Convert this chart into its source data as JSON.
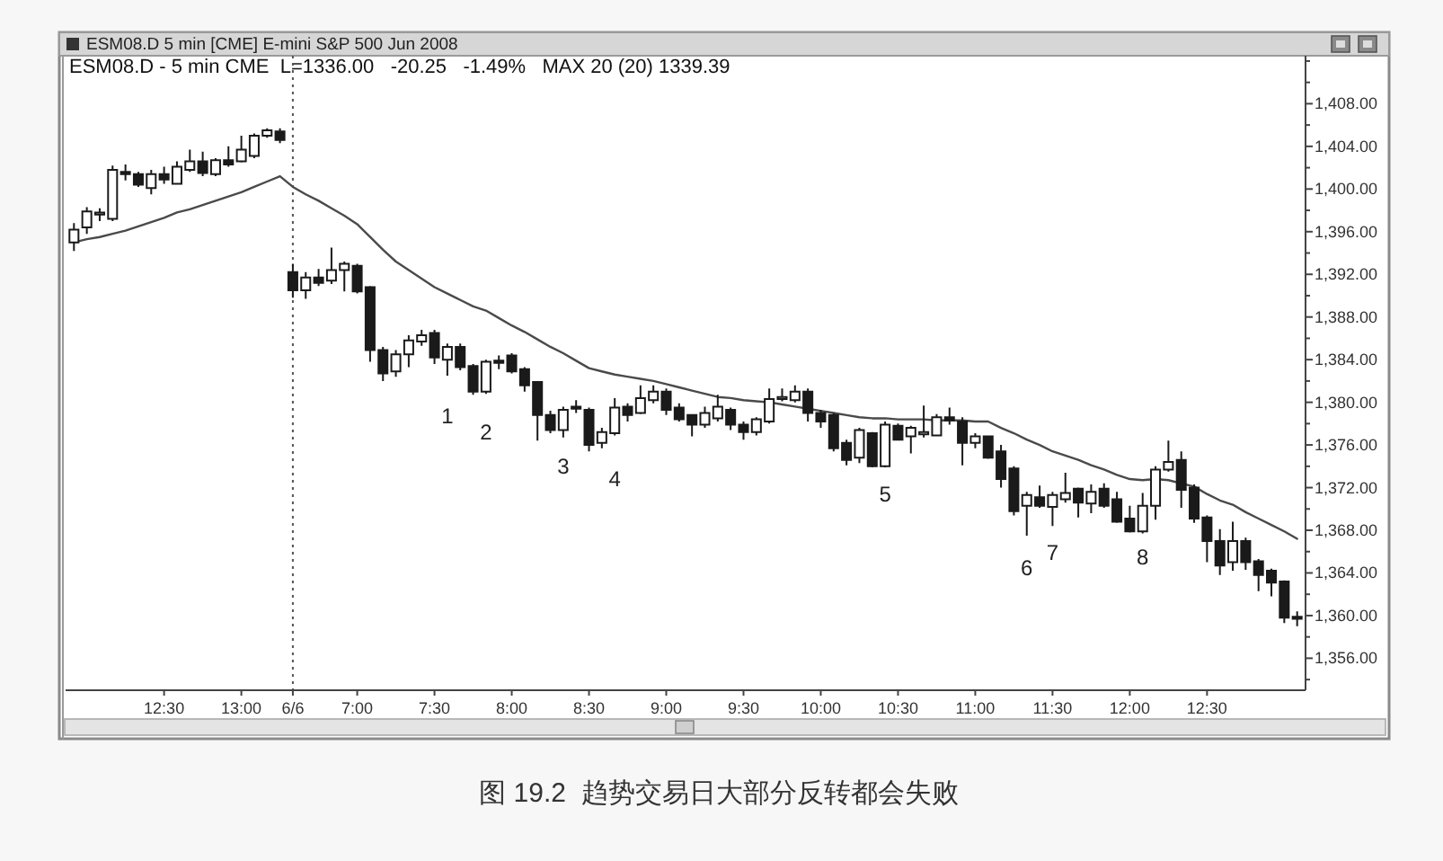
{
  "chart_data": {
    "type": "candlestick",
    "title": "ESM08.D 5 min [CME] E-mini S&P 500 Jun 2008",
    "subtitle": "ESM08.D - 5 min CME  L=1336.00   -20.25   -1.49%   MAX 20 (20) 1339.39",
    "categories": [
      null,
      null,
      null,
      null,
      null,
      null,
      null,
      "12:30",
      null,
      null,
      null,
      null,
      null,
      "13:00",
      null,
      null,
      null,
      "6/6",
      null,
      null,
      null,
      null,
      "7:00",
      null,
      null,
      null,
      null,
      null,
      "7:30",
      null,
      null,
      null,
      null,
      null,
      "8:00",
      null,
      null,
      null,
      null,
      null,
      "8:30",
      null,
      null,
      null,
      null,
      null,
      "9:00",
      null,
      null,
      null,
      null,
      null,
      "9:30",
      null,
      null,
      null,
      null,
      null,
      "10:00",
      null,
      null,
      null,
      null,
      null,
      "10:30",
      null,
      null,
      null,
      null,
      null,
      "11:00",
      null,
      null,
      null,
      null,
      null,
      "11:30",
      null,
      null,
      null,
      null,
      null,
      "12:00",
      null,
      null,
      null,
      null,
      null,
      "12:30",
      null,
      null,
      null,
      null,
      null,
      null,
      null
    ],
    "color": "#1a1a1a",
    "ohlc": [
      [
        1395.0,
        1396.8,
        1394.2,
        1396.2
      ],
      [
        1396.4,
        1398.3,
        1395.8,
        1397.9
      ],
      [
        1397.6,
        1398.2,
        1397.0,
        1397.8
      ],
      [
        1397.2,
        1402.2,
        1397.0,
        1401.8
      ],
      [
        1401.6,
        1402.3,
        1400.8,
        1401.4
      ],
      [
        1401.4,
        1401.6,
        1400.2,
        1400.4
      ],
      [
        1400.1,
        1401.8,
        1399.5,
        1401.4
      ],
      [
        1401.4,
        1402.1,
        1400.5,
        1400.9
      ],
      [
        1400.5,
        1402.6,
        1400.4,
        1402.1
      ],
      [
        1401.8,
        1403.7,
        1401.6,
        1402.6
      ],
      [
        1402.6,
        1403.5,
        1401.2,
        1401.5
      ],
      [
        1401.4,
        1402.9,
        1401.2,
        1402.7
      ],
      [
        1402.7,
        1404.0,
        1402.1,
        1402.3
      ],
      [
        1402.6,
        1405.0,
        1402.5,
        1403.7
      ],
      [
        1403.1,
        1405.2,
        1402.9,
        1405.0
      ],
      [
        1405.0,
        1405.7,
        1404.8,
        1405.5
      ],
      [
        1405.4,
        1405.7,
        1404.3,
        1404.6
      ],
      [
        1392.2,
        1393.0,
        1389.8,
        1390.5
      ],
      [
        1390.5,
        1392.2,
        1389.7,
        1391.7
      ],
      [
        1391.7,
        1392.5,
        1390.9,
        1391.2
      ],
      [
        1391.4,
        1394.5,
        1391.1,
        1392.4
      ],
      [
        1392.4,
        1393.2,
        1390.4,
        1393.0
      ],
      [
        1392.8,
        1393.0,
        1390.2,
        1390.4
      ],
      [
        1390.8,
        1390.9,
        1383.8,
        1384.9
      ],
      [
        1384.9,
        1385.2,
        1382.0,
        1382.7
      ],
      [
        1382.9,
        1384.9,
        1382.4,
        1384.5
      ],
      [
        1384.5,
        1386.3,
        1383.3,
        1385.8
      ],
      [
        1385.7,
        1386.8,
        1385.3,
        1386.3
      ],
      [
        1386.5,
        1386.8,
        1383.6,
        1384.2
      ],
      [
        1384.0,
        1385.5,
        1382.5,
        1385.2
      ],
      [
        1385.2,
        1385.5,
        1383.0,
        1383.3
      ],
      [
        1383.4,
        1383.6,
        1380.7,
        1381.0
      ],
      [
        1381.0,
        1384.0,
        1380.8,
        1383.8
      ],
      [
        1383.9,
        1384.4,
        1383.1,
        1383.7
      ],
      [
        1384.4,
        1384.6,
        1382.7,
        1382.9
      ],
      [
        1383.1,
        1383.3,
        1381.0,
        1381.6
      ],
      [
        1381.9,
        1382.0,
        1376.4,
        1378.8
      ],
      [
        1378.8,
        1379.2,
        1377.1,
        1377.4
      ],
      [
        1377.4,
        1379.6,
        1376.7,
        1379.3
      ],
      [
        1379.6,
        1380.2,
        1379.0,
        1379.4
      ],
      [
        1379.3,
        1379.5,
        1375.4,
        1376.0
      ],
      [
        1376.2,
        1377.6,
        1375.7,
        1377.2
      ],
      [
        1377.1,
        1380.4,
        1376.9,
        1379.5
      ],
      [
        1379.6,
        1379.9,
        1378.2,
        1378.8
      ],
      [
        1379.0,
        1381.6,
        1378.9,
        1380.4
      ],
      [
        1380.2,
        1381.6,
        1379.9,
        1381.0
      ],
      [
        1381.0,
        1381.3,
        1378.8,
        1379.3
      ],
      [
        1379.5,
        1379.9,
        1378.2,
        1378.4
      ],
      [
        1378.8,
        1378.9,
        1376.8,
        1377.9
      ],
      [
        1377.9,
        1379.6,
        1377.6,
        1379.0
      ],
      [
        1378.5,
        1380.7,
        1378.2,
        1379.6
      ],
      [
        1379.3,
        1379.5,
        1377.4,
        1377.9
      ],
      [
        1377.9,
        1378.2,
        1376.5,
        1377.2
      ],
      [
        1377.2,
        1378.6,
        1376.9,
        1378.4
      ],
      [
        1378.2,
        1381.3,
        1378.0,
        1380.3
      ],
      [
        1380.3,
        1381.3,
        1380.1,
        1380.5
      ],
      [
        1380.2,
        1381.6,
        1380.0,
        1381.0
      ],
      [
        1381.0,
        1381.3,
        1378.2,
        1379.0
      ],
      [
        1379.0,
        1379.3,
        1377.6,
        1378.2
      ],
      [
        1378.8,
        1379.0,
        1375.4,
        1375.7
      ],
      [
        1376.2,
        1376.5,
        1374.1,
        1374.6
      ],
      [
        1374.8,
        1377.6,
        1374.3,
        1377.4
      ],
      [
        1377.1,
        1377.2,
        1373.9,
        1374.0
      ],
      [
        1374.0,
        1378.2,
        1373.9,
        1377.9
      ],
      [
        1377.8,
        1378.0,
        1376.4,
        1376.5
      ],
      [
        1376.8,
        1377.8,
        1375.2,
        1377.6
      ],
      [
        1377.0,
        1379.7,
        1376.7,
        1377.2
      ],
      [
        1376.9,
        1378.9,
        1376.8,
        1378.6
      ],
      [
        1378.6,
        1379.5,
        1377.9,
        1378.3
      ],
      [
        1378.2,
        1378.6,
        1374.1,
        1376.2
      ],
      [
        1376.2,
        1377.1,
        1375.7,
        1376.8
      ],
      [
        1376.8,
        1376.9,
        1374.7,
        1374.8
      ],
      [
        1375.4,
        1376.0,
        1372.0,
        1372.8
      ],
      [
        1373.8,
        1374.0,
        1369.4,
        1369.8
      ],
      [
        1370.3,
        1371.6,
        1367.5,
        1371.3
      ],
      [
        1371.1,
        1372.2,
        1370.1,
        1370.3
      ],
      [
        1370.2,
        1371.6,
        1368.4,
        1371.3
      ],
      [
        1370.9,
        1373.4,
        1370.6,
        1371.5
      ],
      [
        1371.9,
        1372.0,
        1369.2,
        1370.6
      ],
      [
        1370.5,
        1372.3,
        1369.6,
        1371.6
      ],
      [
        1371.9,
        1372.4,
        1370.1,
        1370.3
      ],
      [
        1370.9,
        1371.6,
        1368.7,
        1368.8
      ],
      [
        1369.1,
        1370.3,
        1367.8,
        1367.9
      ],
      [
        1367.9,
        1371.5,
        1367.7,
        1370.3
      ],
      [
        1370.3,
        1374.0,
        1369.0,
        1373.7
      ],
      [
        1373.7,
        1376.4,
        1373.5,
        1374.4
      ],
      [
        1374.6,
        1375.4,
        1370.1,
        1371.8
      ],
      [
        1372.0,
        1372.3,
        1368.7,
        1369.1
      ],
      [
        1369.2,
        1369.4,
        1365.0,
        1367.0
      ],
      [
        1367.0,
        1368.1,
        1363.8,
        1364.7
      ],
      [
        1365.0,
        1368.8,
        1364.2,
        1367.0
      ],
      [
        1367.0,
        1367.3,
        1364.3,
        1365.0
      ],
      [
        1365.1,
        1365.3,
        1362.3,
        1363.8
      ],
      [
        1364.2,
        1364.4,
        1361.8,
        1363.1
      ],
      [
        1363.2,
        1363.3,
        1359.3,
        1359.8
      ],
      [
        1359.9,
        1360.4,
        1359.0,
        1359.7
      ]
    ],
    "series": [
      {
        "type": "line",
        "color": "#4a4a4a",
        "values": [
          1395.0,
          1395.3,
          1395.5,
          1395.8,
          1396.1,
          1396.5,
          1396.9,
          1397.3,
          1397.8,
          1398.1,
          1398.5,
          1398.9,
          1399.3,
          1399.7,
          1400.2,
          1400.7,
          1401.2,
          1400.2,
          1399.5,
          1398.9,
          1398.2,
          1397.5,
          1396.7,
          1395.5,
          1394.3,
          1393.2,
          1392.4,
          1391.6,
          1390.8,
          1390.2,
          1389.6,
          1389.0,
          1388.6,
          1387.9,
          1387.2,
          1386.6,
          1385.9,
          1385.2,
          1384.6,
          1383.9,
          1383.2,
          1382.9,
          1382.6,
          1382.4,
          1382.2,
          1382.0,
          1381.7,
          1381.4,
          1381.1,
          1380.8,
          1380.5,
          1380.4,
          1380.2,
          1380.1,
          1380.0,
          1379.8,
          1379.6,
          1379.4,
          1379.2,
          1379.0,
          1378.8,
          1378.6,
          1378.5,
          1378.5,
          1378.4,
          1378.4,
          1378.4,
          1378.3,
          1378.3,
          1378.3,
          1378.2,
          1378.2,
          1377.6,
          1377.1,
          1376.5,
          1376.0,
          1375.4,
          1375.0,
          1374.6,
          1374.1,
          1373.7,
          1373.2,
          1372.8,
          1372.7,
          1372.8,
          1372.7,
          1372.4,
          1372.1,
          1371.4,
          1370.8,
          1370.4,
          1369.7,
          1369.1,
          1368.5,
          1367.9,
          1367.2
        ]
      }
    ],
    "ylim": [
      1353,
      1412.5
    ],
    "yticks": [
      {
        "value": 1354,
        "label": null
      },
      {
        "value": 1356,
        "label": "1,356.00"
      },
      {
        "value": 1358,
        "label": null
      },
      {
        "value": 1360,
        "label": "1,360.00"
      },
      {
        "value": 1362,
        "label": null
      },
      {
        "value": 1364,
        "label": "1,364.00"
      },
      {
        "value": 1366,
        "label": null
      },
      {
        "value": 1368,
        "label": "1,368.00"
      },
      {
        "value": 1370,
        "label": null
      },
      {
        "value": 1372,
        "label": "1,372.00"
      },
      {
        "value": 1374,
        "label": null
      },
      {
        "value": 1376,
        "label": "1,376.00"
      },
      {
        "value": 1378,
        "label": null
      },
      {
        "value": 1380,
        "label": "1,380.00"
      },
      {
        "value": 1382,
        "label": null
      },
      {
        "value": 1384,
        "label": "1,384.00"
      },
      {
        "value": 1386,
        "label": null
      },
      {
        "value": 1388,
        "label": "1,388.00"
      },
      {
        "value": 1390,
        "label": null
      },
      {
        "value": 1392,
        "label": "1,392.00"
      },
      {
        "value": 1394,
        "label": null
      },
      {
        "value": 1396,
        "label": "1,396.00"
      },
      {
        "value": 1398,
        "label": null
      },
      {
        "value": 1400,
        "label": "1,400.00"
      },
      {
        "value": 1402,
        "label": null
      },
      {
        "value": 1404,
        "label": "1,404.00"
      },
      {
        "value": 1406,
        "label": null
      },
      {
        "value": 1408,
        "label": "1,408.00"
      },
      {
        "value": 1410,
        "label": null
      },
      {
        "value": 1412,
        "label": null
      }
    ],
    "ref_lines": [
      {
        "axis": "x",
        "value": "6/6",
        "line_style": "dotted",
        "color": "#555555"
      }
    ],
    "annotations": [
      "1",
      "2",
      "3",
      "4",
      "5",
      "6",
      "7",
      "8",
      "图 19.2  趋势交易日大部分反转都会失败"
    ]
  }
}
